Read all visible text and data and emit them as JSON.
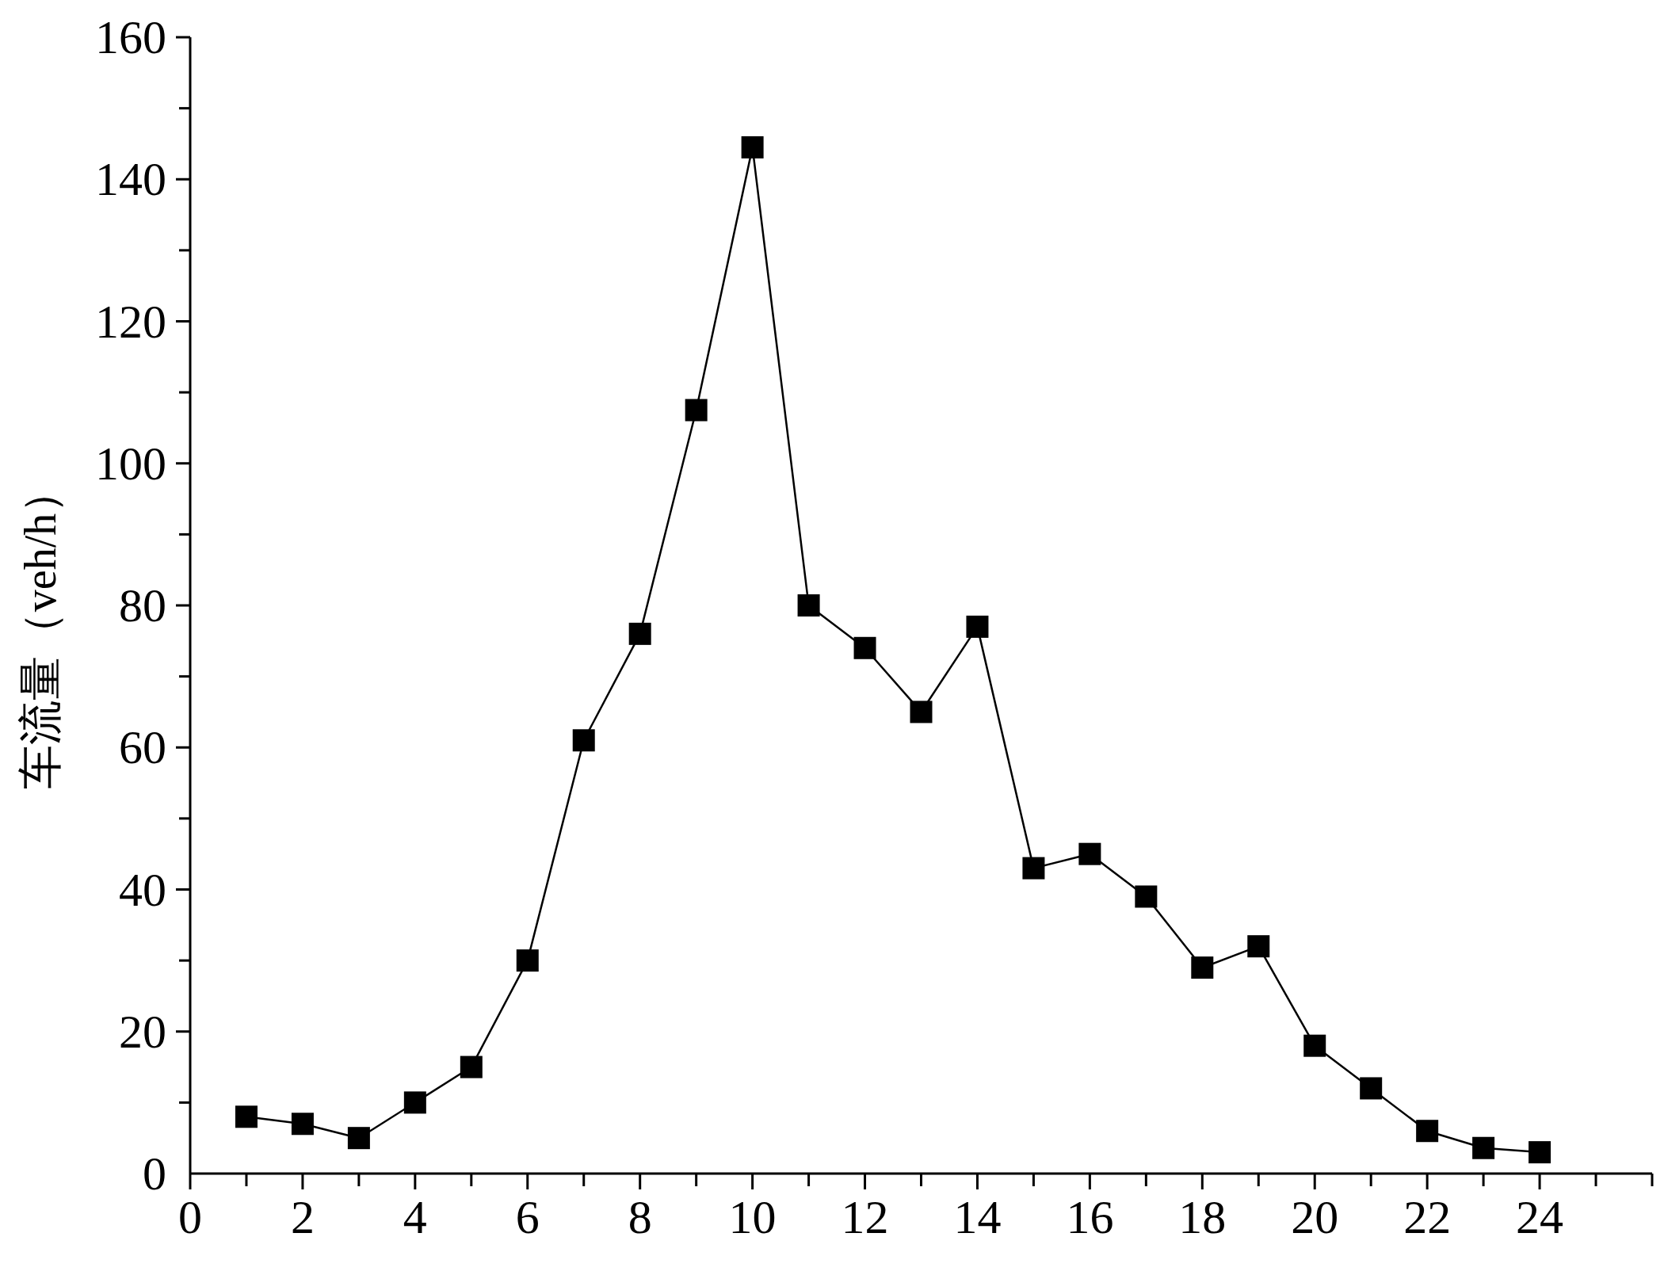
{
  "chart_data": {
    "type": "line",
    "ylabel": "车流量（veh/h）",
    "x": [
      1,
      2,
      3,
      4,
      5,
      6,
      7,
      8,
      9,
      10,
      11,
      12,
      13,
      14,
      15,
      16,
      17,
      18,
      19,
      20,
      21,
      22,
      23,
      24
    ],
    "series": [
      {
        "color": "#000000",
        "values": [
          8,
          7,
          5,
          10,
          15,
          30,
          61,
          76,
          107.5,
          144.5,
          80,
          74,
          65,
          77,
          43,
          45,
          39,
          29,
          32,
          18,
          12,
          6,
          3.6,
          3
        ]
      }
    ],
    "xlim": [
      0,
      26
    ],
    "ylim": [
      0,
      160
    ],
    "xticks": [
      0,
      {
        "value": 1,
        "label": null
      },
      2,
      {
        "value": 3,
        "label": null
      },
      4,
      {
        "value": 5,
        "label": null
      },
      6,
      {
        "value": 7,
        "label": null
      },
      8,
      {
        "value": 9,
        "label": null
      },
      10,
      {
        "value": 11,
        "label": null
      },
      12,
      {
        "value": 13,
        "label": null
      },
      14,
      {
        "value": 15,
        "label": null
      },
      16,
      {
        "value": 17,
        "label": null
      },
      18,
      {
        "value": 19,
        "label": null
      },
      20,
      {
        "value": 21,
        "label": null
      },
      22,
      {
        "value": 23,
        "label": null
      },
      24,
      {
        "value": 25,
        "label": null
      },
      {
        "value": 26,
        "label": null
      }
    ],
    "yticks": [
      0,
      {
        "value": 10,
        "label": null
      },
      20,
      {
        "value": 30,
        "label": null
      },
      40,
      {
        "value": 50,
        "label": null
      },
      60,
      {
        "value": 70,
        "label": null
      },
      80,
      {
        "value": 90,
        "label": null
      },
      100,
      {
        "value": 110,
        "label": null
      },
      120,
      {
        "value": 130,
        "label": null
      },
      140,
      {
        "value": 150,
        "label": null
      },
      160
    ],
    "marker": "square",
    "line_style": "solid",
    "grid": false
  }
}
